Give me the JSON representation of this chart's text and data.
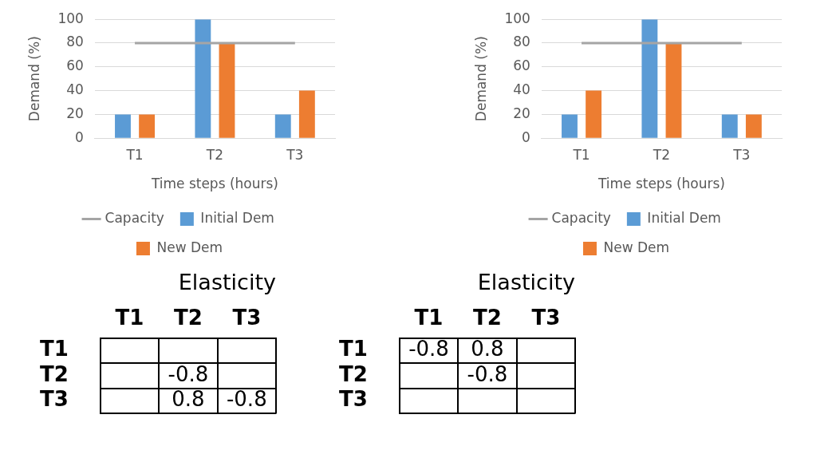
{
  "chart_data": [
    {
      "type": "bar",
      "categories": [
        "T1",
        "T2",
        "T3"
      ],
      "xlabel": "Time steps (hours)",
      "ylabel": "Demand (%)",
      "ylim": [
        0,
        100
      ],
      "yticks": [
        0,
        20,
        40,
        60,
        80,
        100
      ],
      "grid": "y",
      "legend": "bottom",
      "series": [
        {
          "name": "Initial Dem",
          "color": "#5b9bd5",
          "values": [
            20,
            100,
            20
          ]
        },
        {
          "name": "New Dem",
          "color": "#ed7d31",
          "values": [
            20,
            80,
            40
          ]
        },
        {
          "name": "Capacity",
          "type": "line",
          "color": "#a5a5a5",
          "values": [
            80,
            80,
            80
          ]
        }
      ]
    },
    {
      "type": "bar",
      "categories": [
        "T1",
        "T2",
        "T3"
      ],
      "xlabel": "Time steps (hours)",
      "ylabel": "Demand (%)",
      "ylim": [
        0,
        100
      ],
      "yticks": [
        0,
        20,
        40,
        60,
        80,
        100
      ],
      "grid": "y",
      "legend": "bottom",
      "series": [
        {
          "name": "Initial Dem",
          "color": "#5b9bd5",
          "values": [
            20,
            100,
            20
          ]
        },
        {
          "name": "New Dem",
          "color": "#ed7d31",
          "values": [
            40,
            80,
            20
          ]
        },
        {
          "name": "Capacity",
          "type": "line",
          "color": "#a5a5a5",
          "values": [
            80,
            80,
            80
          ]
        }
      ]
    },
    {
      "type": "heatmap",
      "title": "Elasticity",
      "categories": [
        "T1",
        "T2",
        "T3"
      ],
      "y_categories": [
        "T1",
        "T2",
        "T3"
      ],
      "data_labels": true,
      "cells": [
        [
          null,
          null,
          null
        ],
        [
          null,
          -0.8,
          null
        ],
        [
          null,
          0.8,
          -0.8
        ]
      ]
    },
    {
      "type": "heatmap",
      "title": "Elasticity",
      "categories": [
        "T1",
        "T2",
        "T3"
      ],
      "y_categories": [
        "T1",
        "T2",
        "T3"
      ],
      "data_labels": true,
      "cells": [
        [
          -0.8,
          0.8,
          null
        ],
        [
          null,
          -0.8,
          null
        ],
        [
          null,
          null,
          null
        ]
      ]
    }
  ]
}
